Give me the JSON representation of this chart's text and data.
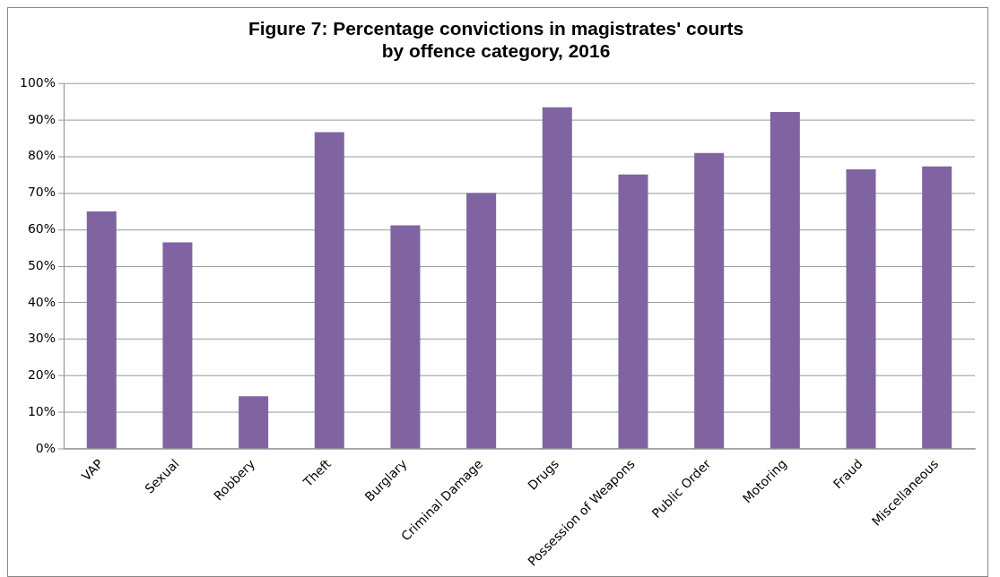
{
  "chart_data": {
    "type": "bar",
    "title": "Figure 7: Percentage convictions in magistrates' courts\nby offence category, 2016",
    "categories": [
      "VAP",
      "Sexual",
      "Robbery",
      "Theft",
      "Burglary",
      "Criminal Damage",
      "Drugs",
      "Possession of Weapons",
      "Public Order",
      "Motoring",
      "Fraud",
      "Miscellaneous"
    ],
    "values": [
      65,
      56.5,
      14.4,
      86.7,
      61.2,
      70,
      93.5,
      75.1,
      81,
      92.2,
      76.5,
      77.3
    ],
    "color": "#8064a2",
    "ylim": [
      0,
      100
    ],
    "yticks": [
      {
        "value": 0,
        "label": "0%"
      },
      {
        "value": 10,
        "label": "10%"
      },
      {
        "value": 20,
        "label": "20%"
      },
      {
        "value": 30,
        "label": "30%"
      },
      {
        "value": 40,
        "label": "40%"
      },
      {
        "value": 50,
        "label": "50%"
      },
      {
        "value": 60,
        "label": "60%"
      },
      {
        "value": 70,
        "label": "70%"
      },
      {
        "value": 80,
        "label": "80%"
      },
      {
        "value": 90,
        "label": "90%"
      },
      {
        "value": 100,
        "label": "100%"
      }
    ],
    "grid": "y"
  }
}
